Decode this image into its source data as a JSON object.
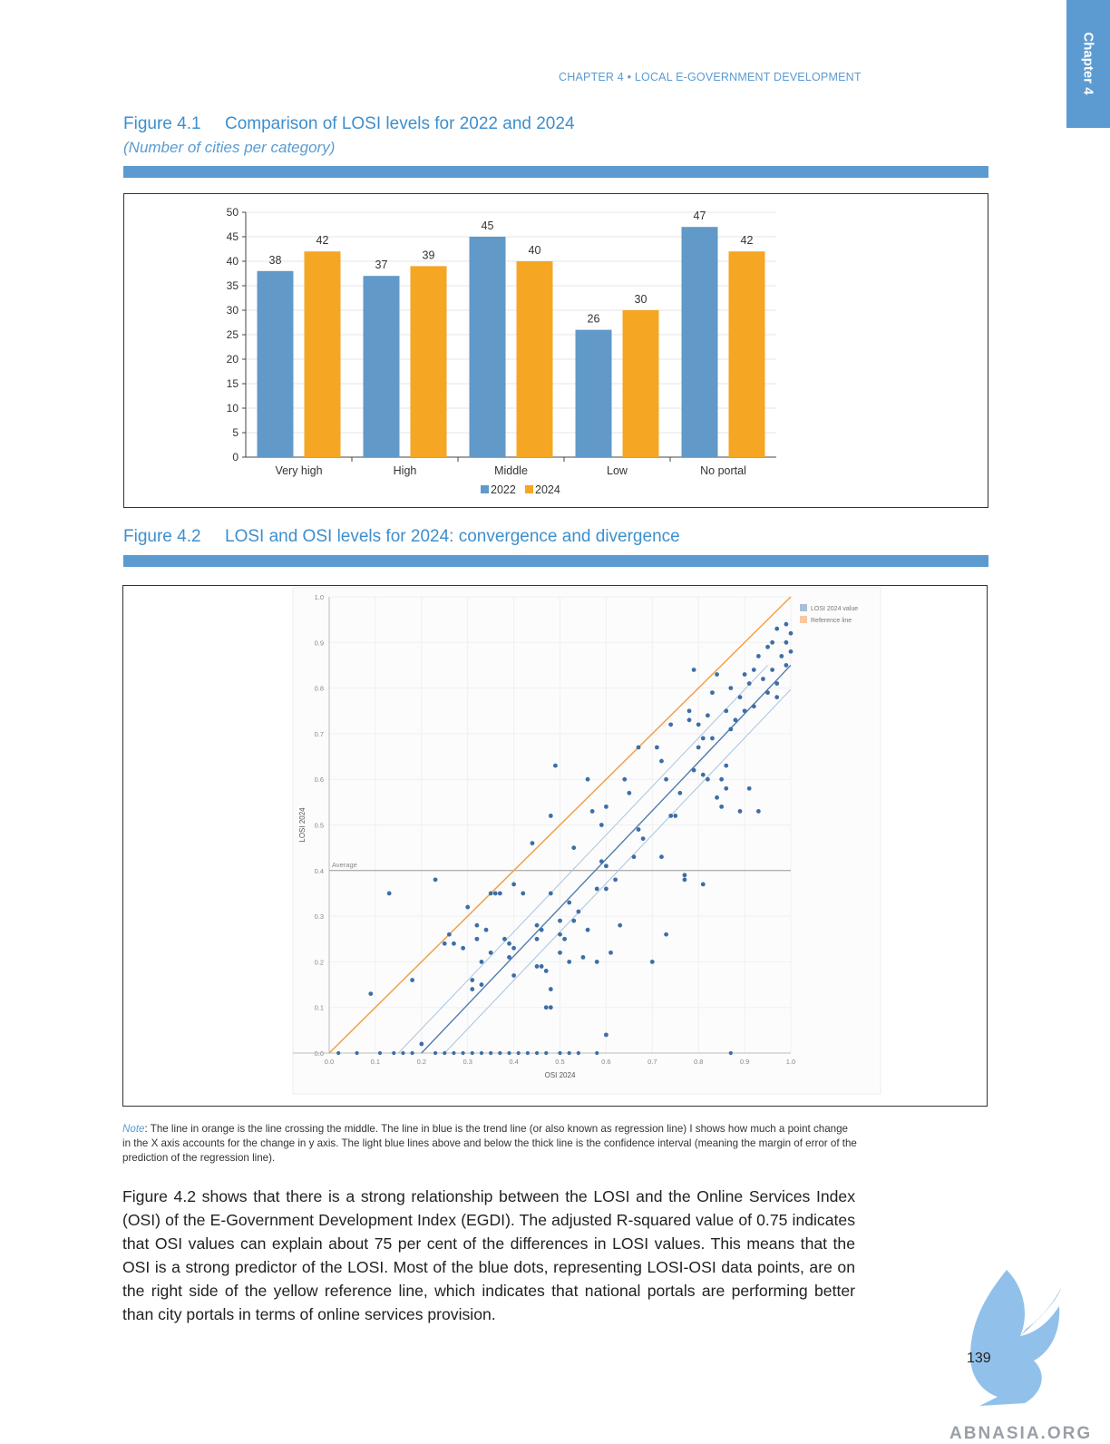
{
  "chapter_tab": "Chapter 4",
  "running_head": "CHAPTER 4 • LOCAL E-GOVERNMENT DEVELOPMENT",
  "figure1": {
    "number": "Figure 4.1",
    "title": "Comparison of LOSI levels for 2022 and 2024",
    "subtitle": "(Number of cities per category)"
  },
  "figure2": {
    "number": "Figure 4.2",
    "title": "LOSI and OSI levels for 2024: convergence and divergence"
  },
  "colors": {
    "blue": "#6199c8",
    "orange": "#f5a623",
    "accent": "#5b9bd1"
  },
  "chart_data": [
    {
      "type": "bar",
      "categories": [
        "Very high",
        "High",
        "Middle",
        "Low",
        "No portal"
      ],
      "series": [
        {
          "name": "2022",
          "values": [
            38,
            37,
            45,
            26,
            47
          ],
          "color": "#6199c8"
        },
        {
          "name": "2024",
          "values": [
            42,
            39,
            40,
            30,
            42
          ],
          "color": "#f5a623"
        }
      ],
      "ylim": [
        0,
        50
      ],
      "yticks": [
        0,
        5,
        10,
        15,
        20,
        25,
        30,
        35,
        40,
        45,
        50
      ],
      "legend": "bottom",
      "grid": true
    },
    {
      "type": "scatter",
      "xlabel": "OSI 2024",
      "ylabel": "LOSI 2024",
      "xlim": [
        0,
        1
      ],
      "ylim": [
        0,
        1
      ],
      "xticks": [
        "0.0",
        "0.1",
        "0.2",
        "0.3",
        "0.4",
        "0.5",
        "0.6",
        "0.7",
        "0.8",
        "0.9",
        "1.0"
      ],
      "yticks": [
        "0.0",
        "0.1",
        "0.2",
        "0.3",
        "0.4",
        "0.5",
        "0.6",
        "0.7",
        "0.8",
        "0.9",
        "1.0"
      ],
      "legend": [
        "LOSI 2024 value",
        "Reference line"
      ],
      "legend_position": "top-right",
      "average_label": "Average",
      "average_y": 0.4,
      "reference_line": {
        "from": [
          0,
          0
        ],
        "to": [
          1,
          1
        ]
      },
      "trend_line": {
        "from": [
          0.2,
          0
        ],
        "to": [
          1,
          0.85
        ]
      },
      "points": [
        [
          0.09,
          0.13
        ],
        [
          0.13,
          0.35
        ],
        [
          0.18,
          0.16
        ],
        [
          0.2,
          0.02
        ],
        [
          0.23,
          0.38
        ],
        [
          0.25,
          0.24
        ],
        [
          0.26,
          0.26
        ],
        [
          0.27,
          0.24
        ],
        [
          0.29,
          0.23
        ],
        [
          0.3,
          0.32
        ],
        [
          0.31,
          0.14
        ],
        [
          0.31,
          0.16
        ],
        [
          0.32,
          0.28
        ],
        [
          0.32,
          0.25
        ],
        [
          0.33,
          0.2
        ],
        [
          0.33,
          0.15
        ],
        [
          0.34,
          0.27
        ],
        [
          0.35,
          0.35
        ],
        [
          0.35,
          0.22
        ],
        [
          0.36,
          0.35
        ],
        [
          0.37,
          0.35
        ],
        [
          0.38,
          0.25
        ],
        [
          0.39,
          0.21
        ],
        [
          0.39,
          0.24
        ],
        [
          0.4,
          0.17
        ],
        [
          0.4,
          0.23
        ],
        [
          0.4,
          0.37
        ],
        [
          0.42,
          0.35
        ],
        [
          0.44,
          0.46
        ],
        [
          0.45,
          0.28
        ],
        [
          0.45,
          0.25
        ],
        [
          0.45,
          0.19
        ],
        [
          0.46,
          0.27
        ],
        [
          0.46,
          0.19
        ],
        [
          0.47,
          0.1
        ],
        [
          0.47,
          0.18
        ],
        [
          0.48,
          0.14
        ],
        [
          0.48,
          0.1
        ],
        [
          0.48,
          0.35
        ],
        [
          0.48,
          0.52
        ],
        [
          0.49,
          0.63
        ],
        [
          0.5,
          0.29
        ],
        [
          0.5,
          0.22
        ],
        [
          0.5,
          0.26
        ],
        [
          0.51,
          0.25
        ],
        [
          0.52,
          0.2
        ],
        [
          0.52,
          0.33
        ],
        [
          0.53,
          0.45
        ],
        [
          0.53,
          0.29
        ],
        [
          0.54,
          0.31
        ],
        [
          0.55,
          0.21
        ],
        [
          0.56,
          0.27
        ],
        [
          0.56,
          0.6
        ],
        [
          0.57,
          0.53
        ],
        [
          0.58,
          0.2
        ],
        [
          0.58,
          0.36
        ],
        [
          0.59,
          0.5
        ],
        [
          0.59,
          0.42
        ],
        [
          0.6,
          0.41
        ],
        [
          0.6,
          0.36
        ],
        [
          0.6,
          0.04
        ],
        [
          0.6,
          0.54
        ],
        [
          0.61,
          0.22
        ],
        [
          0.62,
          0.38
        ],
        [
          0.63,
          0.28
        ],
        [
          0.64,
          0.6
        ],
        [
          0.65,
          0.57
        ],
        [
          0.66,
          0.43
        ],
        [
          0.67,
          0.67
        ],
        [
          0.67,
          0.49
        ],
        [
          0.68,
          0.47
        ],
        [
          0.7,
          0.2
        ],
        [
          0.71,
          0.67
        ],
        [
          0.72,
          0.43
        ],
        [
          0.72,
          0.64
        ],
        [
          0.73,
          0.26
        ],
        [
          0.73,
          0.6
        ],
        [
          0.74,
          0.72
        ],
        [
          0.74,
          0.52
        ],
        [
          0.75,
          0.52
        ],
        [
          0.76,
          0.57
        ],
        [
          0.77,
          0.38
        ],
        [
          0.77,
          0.39
        ],
        [
          0.78,
          0.73
        ],
        [
          0.78,
          0.75
        ],
        [
          0.79,
          0.62
        ],
        [
          0.79,
          0.84
        ],
        [
          0.8,
          0.67
        ],
        [
          0.8,
          0.72
        ],
        [
          0.81,
          0.37
        ],
        [
          0.81,
          0.61
        ],
        [
          0.81,
          0.69
        ],
        [
          0.82,
          0.6
        ],
        [
          0.82,
          0.74
        ],
        [
          0.83,
          0.69
        ],
        [
          0.83,
          0.79
        ],
        [
          0.84,
          0.83
        ],
        [
          0.84,
          0.56
        ],
        [
          0.85,
          0.6
        ],
        [
          0.85,
          0.54
        ],
        [
          0.86,
          0.58
        ],
        [
          0.86,
          0.63
        ],
        [
          0.86,
          0.75
        ],
        [
          0.87,
          0.71
        ],
        [
          0.87,
          0.8
        ],
        [
          0.88,
          0.73
        ],
        [
          0.89,
          0.53
        ],
        [
          0.89,
          0.78
        ],
        [
          0.9,
          0.83
        ],
        [
          0.9,
          0.75
        ],
        [
          0.91,
          0.58
        ],
        [
          0.91,
          0.81
        ],
        [
          0.92,
          0.76
        ],
        [
          0.92,
          0.84
        ],
        [
          0.93,
          0.87
        ],
        [
          0.93,
          0.53
        ],
        [
          0.94,
          0.82
        ],
        [
          0.95,
          0.79
        ],
        [
          0.95,
          0.89
        ],
        [
          0.96,
          0.84
        ],
        [
          0.96,
          0.9
        ],
        [
          0.97,
          0.78
        ],
        [
          0.97,
          0.93
        ],
        [
          0.98,
          0.87
        ],
        [
          0.99,
          0.9
        ],
        [
          0.99,
          0.85
        ],
        [
          1.0,
          0.92
        ],
        [
          1.0,
          0.88
        ],
        [
          0.99,
          0.94
        ],
        [
          0.97,
          0.81
        ]
      ],
      "zero_points_x": [
        0.02,
        0.06,
        0.11,
        0.14,
        0.16,
        0.18,
        0.23,
        0.25,
        0.27,
        0.29,
        0.31,
        0.33,
        0.35,
        0.37,
        0.39,
        0.41,
        0.43,
        0.45,
        0.47,
        0.5,
        0.52,
        0.54,
        0.58,
        0.87
      ]
    }
  ],
  "note": {
    "label": "Note",
    "text": ": The line in orange is the line crossing the middle. The line in blue is the trend line (or also known as regression line) I shows how much a point change in the X axis accounts for the change in y axis. The light blue lines above and below the thick line is the confidence interval (meaning the margin of error of the prediction of the regression line)."
  },
  "body": "Figure 4.2 shows that there is a strong relationship between the LOSI and the Online Services Index (OSI) of the E-Government Development Index (EGDI). The adjusted R-squared value of 0.75 indicates that OSI values can explain about 75 per cent of the differences in LOSI values. This means that the OSI is a strong predictor of the LOSI. Most of the blue dots, representing LOSI-OSI data points, are on the right side of the yellow reference line, which indicates that national portals are performing better than city portals in terms of online services provision.",
  "page_number": "139",
  "watermark": "ABNASIA.ORG"
}
